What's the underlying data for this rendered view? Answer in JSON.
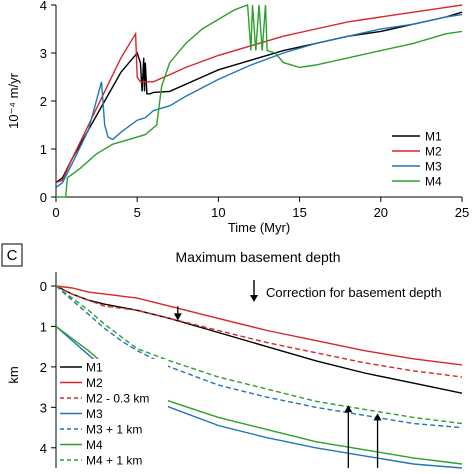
{
  "chart_data": [
    {
      "type": "line",
      "panel": "top",
      "xlabel": "Time (Myr)",
      "ylabel": "10⁻⁴ m/yr",
      "xlim": [
        0,
        25
      ],
      "ylim": [
        0,
        4
      ],
      "xticks": [
        0,
        5,
        10,
        15,
        20,
        25
      ],
      "yticks": [
        0,
        1,
        2,
        3,
        4
      ],
      "legend_position": "right-middle",
      "series": [
        {
          "name": "M1",
          "color": "#000000",
          "dash": "solid",
          "x": [
            0,
            0.4,
            1,
            2,
            3,
            4,
            5,
            5.2,
            5.3,
            5.4,
            5.45,
            5.5,
            5.6,
            5.8,
            6,
            7,
            8,
            9,
            10,
            12,
            14,
            16,
            18,
            20,
            22,
            24,
            25
          ],
          "y": [
            0.3,
            0.4,
            0.8,
            1.4,
            2.0,
            2.6,
            3.0,
            2.8,
            2.2,
            2.9,
            2.2,
            2.8,
            2.15,
            2.15,
            2.18,
            2.2,
            2.35,
            2.5,
            2.65,
            2.85,
            3.05,
            3.2,
            3.35,
            3.45,
            3.6,
            3.75,
            3.85
          ]
        },
        {
          "name": "M2",
          "color": "#d62728",
          "dash": "solid",
          "x": [
            0,
            0.4,
            1,
            2,
            3,
            4,
            4.9,
            5.0,
            5.2,
            6,
            7,
            8,
            10,
            12,
            14,
            16,
            18,
            20,
            22,
            24,
            25
          ],
          "y": [
            0.3,
            0.35,
            0.8,
            1.5,
            2.2,
            2.9,
            3.4,
            2.5,
            2.4,
            2.4,
            2.55,
            2.7,
            2.95,
            3.15,
            3.35,
            3.5,
            3.65,
            3.75,
            3.85,
            3.95,
            4.0
          ]
        },
        {
          "name": "M3",
          "color": "#1f77b4",
          "dash": "solid",
          "x": [
            0,
            0.4,
            1,
            2,
            2.8,
            3.0,
            3.2,
            3.5,
            4,
            5,
            5.5,
            6,
            7,
            8,
            10,
            12,
            14,
            16,
            18,
            20,
            22,
            24,
            25
          ],
          "y": [
            0.2,
            0.3,
            0.7,
            1.4,
            2.4,
            1.5,
            1.25,
            1.2,
            1.35,
            1.6,
            1.65,
            1.8,
            1.9,
            2.1,
            2.45,
            2.75,
            3.0,
            3.2,
            3.35,
            3.5,
            3.6,
            3.75,
            3.8
          ]
        },
        {
          "name": "M4",
          "color": "#2ca02c",
          "dash": "solid",
          "x": [
            0,
            0.6,
            0.7,
            1.5,
            2.5,
            3.5,
            4.5,
            5.5,
            6.2,
            6.5,
            7,
            8,
            9,
            10,
            11,
            11.8,
            12,
            12.1,
            12.3,
            12.5,
            12.7,
            12.9,
            13,
            13.5,
            14,
            15,
            16,
            18,
            20,
            22,
            24,
            25
          ],
          "y": [
            0,
            0,
            0.4,
            0.6,
            0.9,
            1.1,
            1.2,
            1.3,
            1.5,
            2.3,
            2.8,
            3.2,
            3.5,
            3.7,
            3.9,
            4.0,
            3.05,
            4.0,
            3.05,
            4.0,
            3.05,
            4.0,
            3.05,
            3.0,
            2.8,
            2.7,
            2.75,
            2.9,
            3.05,
            3.2,
            3.4,
            3.45
          ]
        }
      ]
    },
    {
      "type": "line",
      "panel": "bottom",
      "panel_letter": "C",
      "title": "Maximum basement depth",
      "annotation": "Correction for basement depth",
      "ylabel": "km",
      "xlim": [
        0,
        25
      ],
      "ylim": [
        4.5,
        0
      ],
      "yticks": [
        0,
        1,
        2,
        3,
        4
      ],
      "legend_position": "bottom-left",
      "series": [
        {
          "name": "M1",
          "color": "#000000",
          "dash": "solid",
          "x": [
            0,
            1,
            2,
            3,
            5,
            7,
            10,
            13,
            16,
            19,
            22,
            25
          ],
          "y": [
            0,
            0.2,
            0.35,
            0.45,
            0.6,
            0.8,
            1.15,
            1.5,
            1.85,
            2.15,
            2.4,
            2.65
          ]
        },
        {
          "name": "M2",
          "color": "#d62728",
          "dash": "solid",
          "x": [
            0,
            1,
            2,
            3,
            5,
            7,
            10,
            13,
            16,
            19,
            22,
            25
          ],
          "y": [
            0,
            0.05,
            0.15,
            0.2,
            0.3,
            0.5,
            0.8,
            1.1,
            1.35,
            1.6,
            1.8,
            1.95
          ]
        },
        {
          "name": "M2 - 0.3 km",
          "color": "#d62728",
          "dash": "dashed",
          "x": [
            0,
            1,
            2,
            3,
            5,
            7,
            10,
            13,
            16,
            19,
            22,
            25
          ],
          "y": [
            0,
            0.2,
            0.35,
            0.5,
            0.6,
            0.8,
            1.1,
            1.4,
            1.65,
            1.9,
            2.1,
            2.25
          ]
        },
        {
          "name": "M3",
          "color": "#1f77b4",
          "dash": "solid",
          "x": [
            0,
            1,
            2,
            3,
            4,
            5,
            7,
            10,
            13,
            16,
            19,
            22,
            25
          ],
          "y": [
            1.0,
            1.35,
            1.7,
            2.05,
            2.35,
            2.6,
            3.0,
            3.45,
            3.75,
            4.0,
            4.2,
            4.4,
            4.5
          ]
        },
        {
          "name": "M3 + 1 km",
          "color": "#1f77b4",
          "dash": "dashed",
          "x": [
            0,
            1,
            2,
            3,
            4,
            5,
            7,
            10,
            13,
            16,
            19,
            22,
            25
          ],
          "y": [
            0,
            0.35,
            0.7,
            1.05,
            1.35,
            1.6,
            2.0,
            2.45,
            2.75,
            3.0,
            3.2,
            3.4,
            3.5
          ]
        },
        {
          "name": "M4",
          "color": "#2ca02c",
          "dash": "solid",
          "x": [
            0,
            1,
            2,
            3,
            4,
            5,
            7,
            10,
            13,
            16,
            19,
            22,
            25
          ],
          "y": [
            1.0,
            1.3,
            1.6,
            1.95,
            2.25,
            2.55,
            2.85,
            3.25,
            3.55,
            3.85,
            4.05,
            4.25,
            4.4
          ]
        },
        {
          "name": "M4 + 1 km",
          "color": "#2ca02c",
          "dash": "dashed",
          "x": [
            0,
            1,
            2,
            3,
            4,
            5,
            7,
            10,
            13,
            16,
            19,
            22,
            25
          ],
          "y": [
            0,
            0.3,
            0.6,
            0.95,
            1.25,
            1.55,
            1.85,
            2.25,
            2.55,
            2.85,
            3.05,
            3.25,
            3.4
          ]
        }
      ],
      "arrows": [
        {
          "x": 7.5,
          "y_from": 0.5,
          "y_to": 0.85,
          "color": "#000000"
        },
        {
          "x": 18.0,
          "y_from": 4.5,
          "y_to": 2.95,
          "color": "#000000"
        },
        {
          "x": 19.8,
          "y_from": 4.5,
          "y_to": 3.15,
          "color": "#000000"
        }
      ]
    }
  ]
}
